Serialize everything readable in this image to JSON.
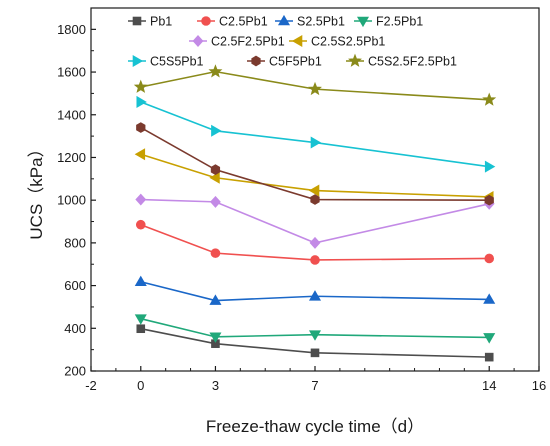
{
  "chart_data": {
    "type": "line",
    "title": "",
    "xlabel": "Freeze-thaw cycle time（d）",
    "ylabel": "UCS（kPa）",
    "xlim": [
      -2,
      16
    ],
    "ylim": [
      200,
      1900
    ],
    "x_ticks": [
      "-2",
      "0",
      "3",
      "7",
      "14",
      "16"
    ],
    "x_tick_values": [
      -2,
      0,
      3,
      7,
      14,
      16
    ],
    "y_ticks": [
      "200",
      "400",
      "600",
      "800",
      "1000",
      "1200",
      "1400",
      "1600",
      "1800"
    ],
    "y_tick_values": [
      200,
      400,
      600,
      800,
      1000,
      1200,
      1400,
      1600,
      1800
    ],
    "grid": false,
    "legend_position": "top",
    "x": [
      0,
      3,
      7,
      14
    ],
    "series": [
      {
        "name": "Pb1",
        "values": [
          398,
          328,
          285,
          265
        ],
        "color": "#4d4d4d",
        "marker": "square"
      },
      {
        "name": "C2.5Pb1",
        "values": [
          885,
          752,
          720,
          727
        ],
        "color": "#f0504f",
        "marker": "circle"
      },
      {
        "name": "S2.5Pb1",
        "values": [
          618,
          530,
          550,
          535
        ],
        "color": "#1a67c8",
        "marker": "triangle-up"
      },
      {
        "name": "F2.5Pb1",
        "values": [
          445,
          360,
          370,
          357
        ],
        "color": "#20a87a",
        "marker": "triangle-down"
      },
      {
        "name": "C2.5F2.5Pb1",
        "values": [
          1003,
          992,
          800,
          983
        ],
        "color": "#c38ae6",
        "marker": "diamond"
      },
      {
        "name": "C2.5S2.5Pb1",
        "values": [
          1215,
          1105,
          1045,
          1015
        ],
        "color": "#c8a000",
        "marker": "triangle-left"
      },
      {
        "name": "C5S5Pb1",
        "values": [
          1460,
          1325,
          1270,
          1157
        ],
        "color": "#17c2d2",
        "marker": "triangle-right"
      },
      {
        "name": "C5F5Pb1",
        "values": [
          1340,
          1143,
          1003,
          1000
        ],
        "color": "#7b3a2e",
        "marker": "hexagon"
      },
      {
        "name": "C5S2.5F2.5Pb1",
        "values": [
          1530,
          1602,
          1520,
          1470
        ],
        "color": "#8a8a1a",
        "marker": "star"
      }
    ]
  }
}
